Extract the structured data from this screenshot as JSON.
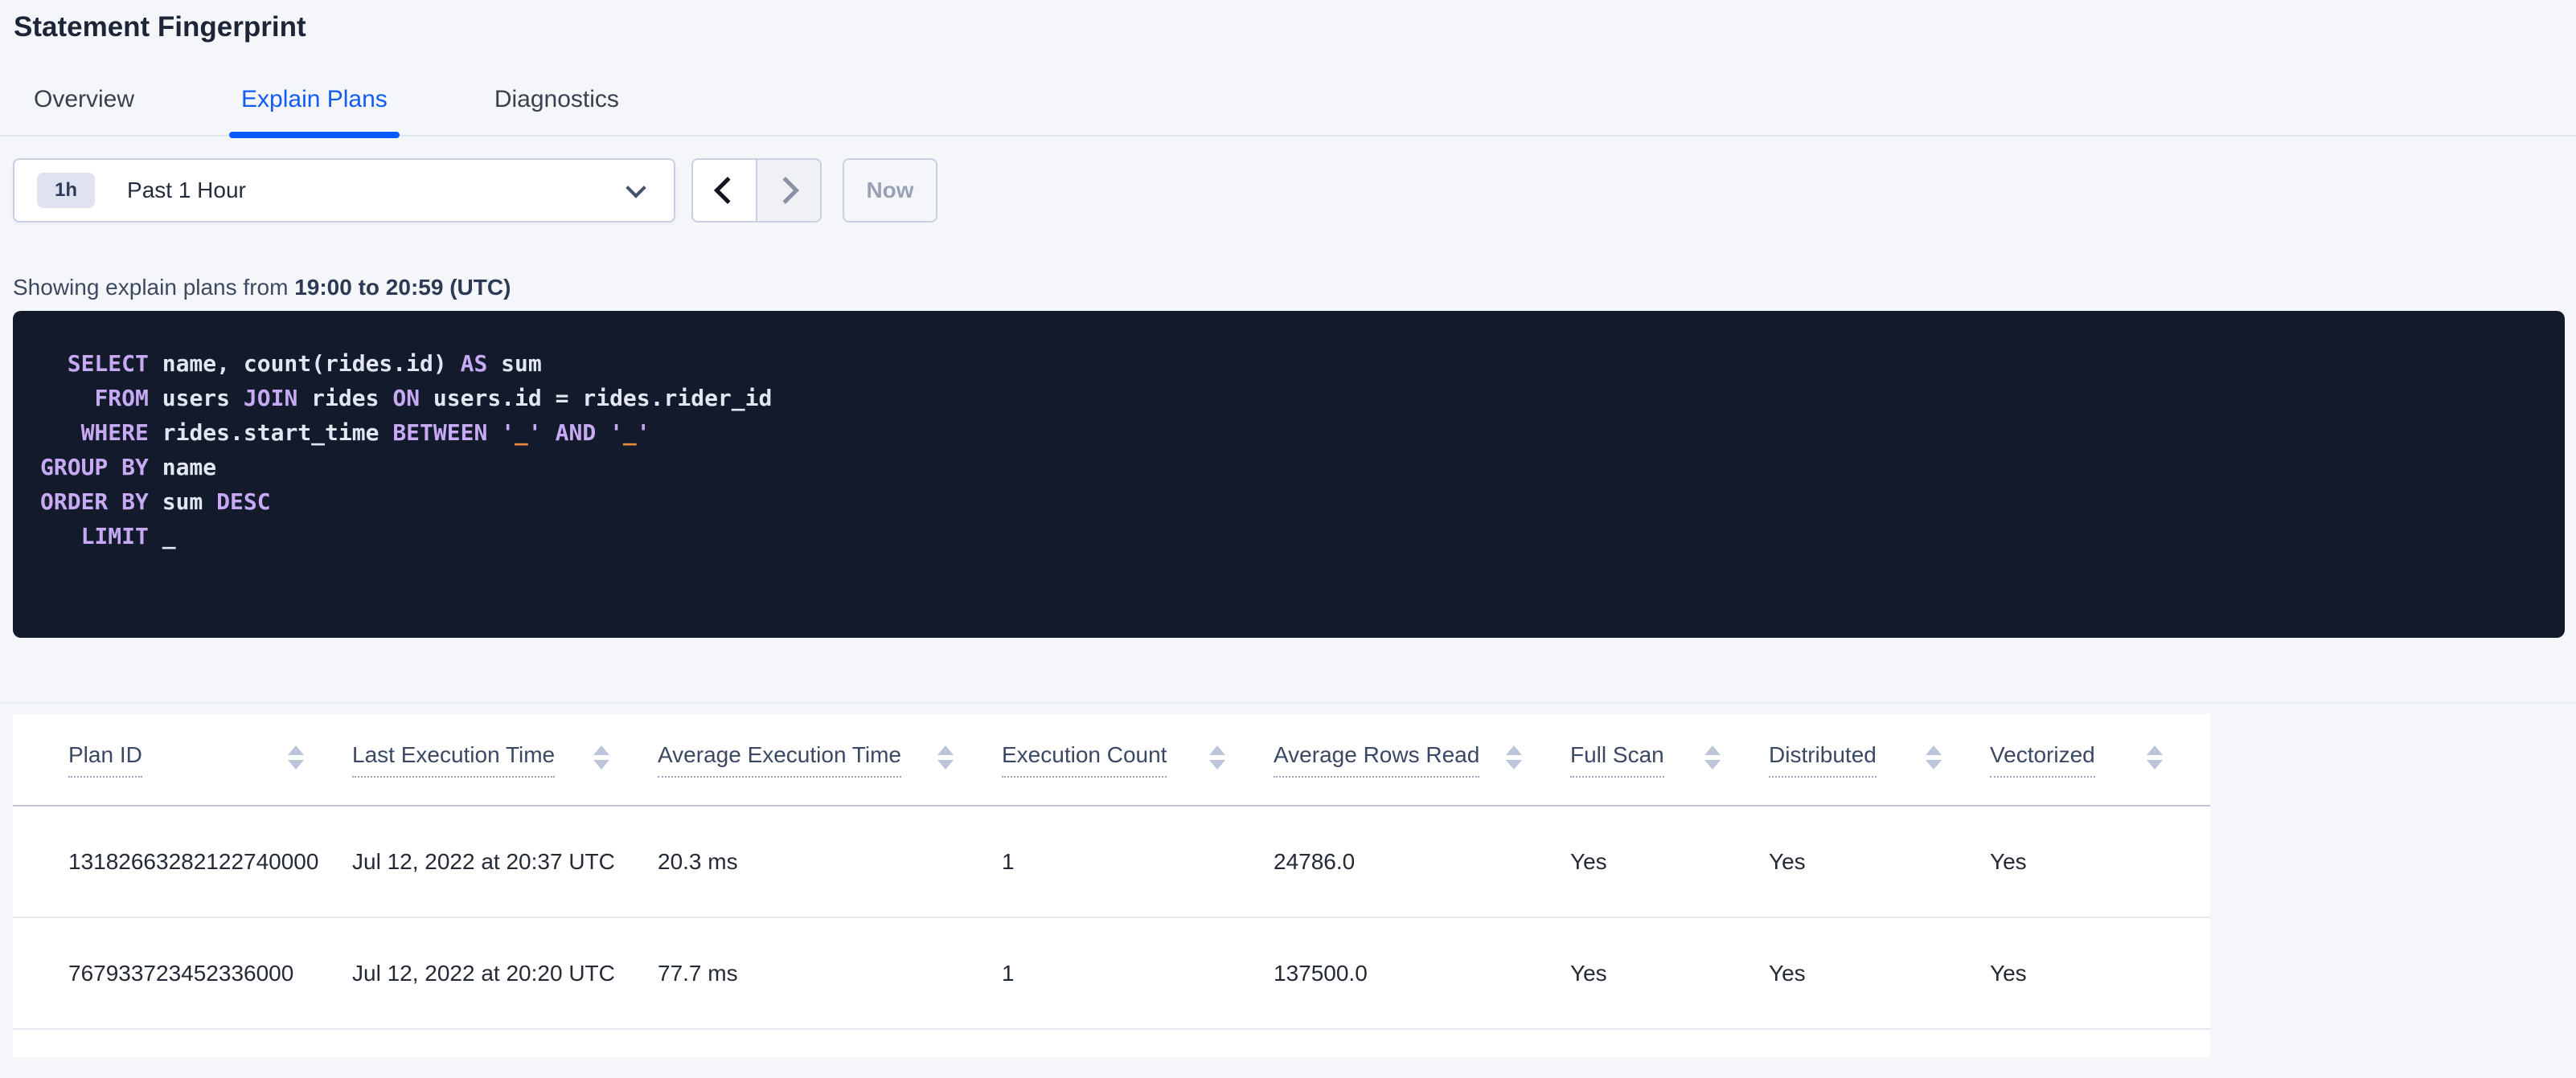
{
  "page": {
    "title": "Statement Fingerprint"
  },
  "tabs": [
    {
      "label": "Overview",
      "active": false
    },
    {
      "label": "Explain Plans",
      "active": true
    },
    {
      "label": "Diagnostics",
      "active": false
    }
  ],
  "time_picker": {
    "badge": "1h",
    "label": "Past 1 Hour",
    "now_label": "Now"
  },
  "icons": {
    "dropdown": "chevron-down",
    "prev": "chevron-left",
    "next": "chevron-right",
    "sort": "up-down-arrows"
  },
  "summary": {
    "prefix": "Showing explain plans from ",
    "bold_range": "19:00 to 20:59 (UTC)"
  },
  "sql": {
    "lines": [
      [
        {
          "c": "kw",
          "v": "  SELECT"
        },
        {
          "c": "pl",
          "v": " name, count(rides.id) "
        },
        {
          "c": "kw",
          "v": "AS"
        },
        {
          "c": "pl",
          "v": " sum"
        }
      ],
      [
        {
          "c": "pl",
          "v": "    "
        },
        {
          "c": "kw",
          "v": "FROM"
        },
        {
          "c": "pl",
          "v": " users "
        },
        {
          "c": "kw",
          "v": "JOIN"
        },
        {
          "c": "pl",
          "v": " rides "
        },
        {
          "c": "kw",
          "v": "ON"
        },
        {
          "c": "pl",
          "v": " users.id = rides.rider_id"
        }
      ],
      [
        {
          "c": "pl",
          "v": "   "
        },
        {
          "c": "kw",
          "v": "WHERE"
        },
        {
          "c": "pl",
          "v": " rides.start_time "
        },
        {
          "c": "kw",
          "v": "BETWEEN"
        },
        {
          "c": "pl",
          "v": " "
        },
        {
          "c": "str",
          "v": "'"
        },
        {
          "c": "ph",
          "v": "_"
        },
        {
          "c": "str",
          "v": "'"
        },
        {
          "c": "pl",
          "v": " "
        },
        {
          "c": "kw",
          "v": "AND"
        },
        {
          "c": "pl",
          "v": " "
        },
        {
          "c": "str",
          "v": "'"
        },
        {
          "c": "ph",
          "v": "_"
        },
        {
          "c": "str",
          "v": "'"
        }
      ],
      [
        {
          "c": "kw",
          "v": "GROUP BY"
        },
        {
          "c": "pl",
          "v": " name"
        }
      ],
      [
        {
          "c": "kw",
          "v": "ORDER BY"
        },
        {
          "c": "pl",
          "v": " sum "
        },
        {
          "c": "kw",
          "v": "DESC"
        }
      ],
      [
        {
          "c": "pl",
          "v": "   "
        },
        {
          "c": "kw",
          "v": "LIMIT"
        },
        {
          "c": "pl",
          "v": " _"
        }
      ]
    ]
  },
  "table": {
    "columns": [
      "Plan ID",
      "Last Execution Time",
      "Average Execution Time",
      "Execution Count",
      "Average Rows Read",
      "Full Scan",
      "Distributed",
      "Vectorized"
    ],
    "rows": [
      [
        "13182663282122740000",
        "Jul 12, 2022 at 20:37 UTC",
        "20.3 ms",
        "1",
        "24786.0",
        "Yes",
        "Yes",
        "Yes"
      ],
      [
        "767933723452336000",
        "Jul 12, 2022 at 20:20 UTC",
        "77.7 ms",
        "1",
        "137500.0",
        "Yes",
        "Yes",
        "Yes"
      ]
    ]
  },
  "colors": {
    "accent_blue": "#115bf7",
    "tab_underline": "#0b5cff",
    "page_bg": "#f4f6fa",
    "sql_bg": "#121a2c",
    "sql_keyword": "#c7aaf3",
    "sql_text": "#e2e6f0",
    "sql_placeholder": "#ef8e3a",
    "header_text": "#3a4863",
    "cell_text": "#242a35"
  }
}
